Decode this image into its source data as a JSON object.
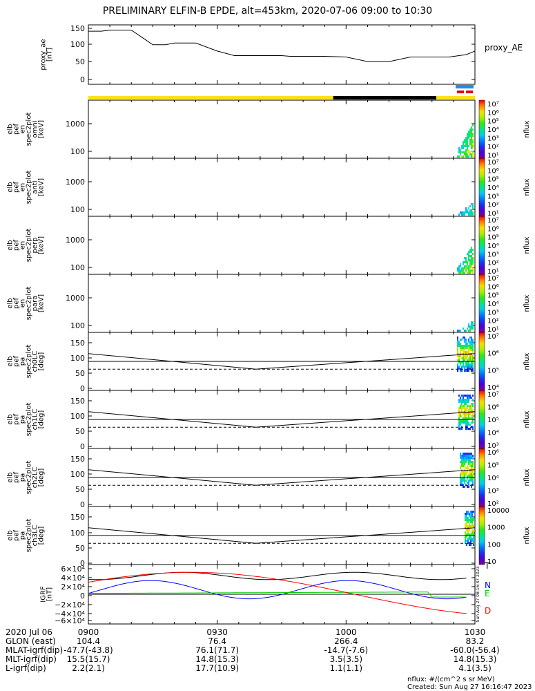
{
  "title": "PRELIMINARY ELFIN-B EPDE, alt=453km, 2020-07-06 09:00 to 10:30",
  "chart_data": [
    {
      "type": "line",
      "ylabel": [
        "proxy_ae",
        "[nT]"
      ],
      "yticks": [
        "150",
        "100",
        "50",
        "0"
      ],
      "ylim": [
        -10,
        160
      ],
      "legend": "proxy_AE",
      "x_minutes": [
        0,
        3,
        5,
        7,
        10,
        13,
        15,
        18,
        20,
        22,
        25,
        30,
        34,
        40,
        45,
        47,
        55,
        60,
        65,
        70,
        75,
        80,
        84,
        88,
        90
      ],
      "values": [
        142,
        142,
        145,
        145,
        145,
        120,
        103,
        103,
        108,
        108,
        108,
        85,
        72,
        72,
        72,
        70,
        70,
        68,
        55,
        55,
        68,
        68,
        68,
        75,
        85
      ]
    },
    {
      "type": "heatmap",
      "ylabel": [
        "elb",
        "pef",
        "en",
        "spec2plot",
        "omni",
        "[keV]"
      ],
      "yticks": [
        "1000",
        "100"
      ],
      "ylim": [
        60,
        7000
      ],
      "scale": "log",
      "colorbar": {
        "label": "nflux",
        "ticks": [
          "10⁷",
          "10⁶",
          "10⁵",
          "10⁴",
          "10³",
          "10²",
          "10¹"
        ]
      }
    },
    {
      "type": "heatmap",
      "ylabel": [
        "elb",
        "pef",
        "en",
        "spec2plot",
        "anti",
        "[keV]"
      ],
      "yticks": [
        "1000",
        "100"
      ],
      "ylim": [
        60,
        7000
      ],
      "scale": "log",
      "colorbar": {
        "label": "nflux",
        "ticks": [
          "10⁷",
          "10⁶",
          "10⁵",
          "10⁴",
          "10³",
          "10²",
          "10¹"
        ]
      }
    },
    {
      "type": "heatmap",
      "ylabel": [
        "elb",
        "pef",
        "en",
        "spec2plot",
        "perp",
        "[keV]"
      ],
      "yticks": [
        "1000",
        "100"
      ],
      "ylim": [
        60,
        7000
      ],
      "scale": "log",
      "colorbar": {
        "label": "nflux",
        "ticks": [
          "10⁷",
          "10⁶",
          "10⁵",
          "10⁴",
          "10³",
          "10²",
          "10¹"
        ]
      }
    },
    {
      "type": "heatmap",
      "ylabel": [
        "elb",
        "pef",
        "en",
        "spec2plot",
        "para",
        "[keV]"
      ],
      "yticks": [
        "1000",
        "100"
      ],
      "ylim": [
        60,
        7000
      ],
      "scale": "log",
      "colorbar": {
        "label": "nflux",
        "ticks": [
          "10⁷",
          "10⁶",
          "10⁵",
          "10⁴",
          "10³",
          "10²",
          "10¹"
        ]
      }
    },
    {
      "type": "heatmap",
      "ylabel": [
        "elb",
        "pef",
        "pa",
        "spec2plot",
        "ch0LC",
        "[deg]"
      ],
      "yticks": [
        "150",
        "100",
        "50",
        "0"
      ],
      "ylim": [
        0,
        180
      ],
      "colorbar": {
        "label": "nflux",
        "ticks": [
          "10⁷",
          "10⁶",
          "10⁵",
          "10⁴"
        ]
      }
    },
    {
      "type": "heatmap",
      "ylabel": [
        "elb",
        "pef",
        "pa",
        "spec2plot",
        "ch1LC",
        "[deg]"
      ],
      "yticks": [
        "150",
        "100",
        "50",
        "0"
      ],
      "ylim": [
        0,
        180
      ],
      "colorbar": {
        "label": "nflux",
        "ticks": [
          "10⁷",
          "10⁶",
          "10⁵",
          "10⁴",
          "10³"
        ]
      }
    },
    {
      "type": "heatmap",
      "ylabel": [
        "elb",
        "pef",
        "pa",
        "spec2plot",
        "ch2LC",
        "[deg]"
      ],
      "yticks": [
        "150",
        "100",
        "50",
        "0"
      ],
      "ylim": [
        0,
        180
      ],
      "colorbar": {
        "label": "nflux",
        "ticks": [
          "10⁶",
          "10⁵",
          "10⁴",
          "10³",
          "10²"
        ]
      }
    },
    {
      "type": "heatmap",
      "ylabel": [
        "elb",
        "pef",
        "pa",
        "spec2plot",
        "ch3LC",
        "[deg]"
      ],
      "yticks": [
        "150",
        "100",
        "50",
        "0"
      ],
      "ylim": [
        0,
        180
      ],
      "colorbar": {
        "label": "nflux",
        "ticks": [
          "10000",
          "1000",
          "100",
          "10"
        ]
      }
    },
    {
      "type": "line",
      "ylabel": [
        "IGRF",
        "[nT]"
      ],
      "yticks": [
        "6×10⁴",
        "4×10⁴",
        "2×10⁴",
        "0",
        "−2×10⁴",
        "−4×10⁴",
        "−6×10⁴"
      ],
      "ylim": [
        -65000,
        65000
      ],
      "series": [
        {
          "name": "T",
          "color": "#000000"
        },
        {
          "name": "N",
          "color": "#0000ff"
        },
        {
          "name": "E",
          "color": "#00cc00"
        },
        {
          "name": "D",
          "color": "#ff0000"
        }
      ]
    }
  ],
  "axis": {
    "row_labels": [
      "2020 Jul 06",
      "GLON (east)",
      "MLAT-igrf(dip)",
      "MLT-igrf(dip)",
      "L-igrf(dip)"
    ],
    "ticks": [
      {
        "time": "0900",
        "minutes": 0,
        "values": [
          "104.4",
          "-47.7(-43.8)",
          "15.5(15.7)",
          "2.2(2.1)"
        ]
      },
      {
        "time": "0930",
        "minutes": 30,
        "values": [
          "76.4",
          "76.1(71.7)",
          "14.8(15.3)",
          "17.7(10.9)"
        ]
      },
      {
        "time": "1000",
        "minutes": 60,
        "values": [
          "266.4",
          "-14.7(-7.6)",
          "3.5(3.5)",
          "1.1(1.1)"
        ]
      },
      {
        "time": "1030",
        "minutes": 90,
        "values": [
          "83.2",
          "-60.0(-56.4)",
          "14.8(15.3)",
          "4.1(3.5)"
        ]
      }
    ]
  },
  "sidebar_note": "Sun Aug 27 08:16:47 2023",
  "footer": {
    "units": "nflux: #/(cm^2 s sr MeV)",
    "created": "Created: Sun Aug 27 16:16:47 2023"
  },
  "colors": {
    "sunlight_bar": "#ffe11a",
    "shadow_bar": "#000000",
    "science_blue": "#1e8ef0",
    "science_red": "#e00000"
  }
}
